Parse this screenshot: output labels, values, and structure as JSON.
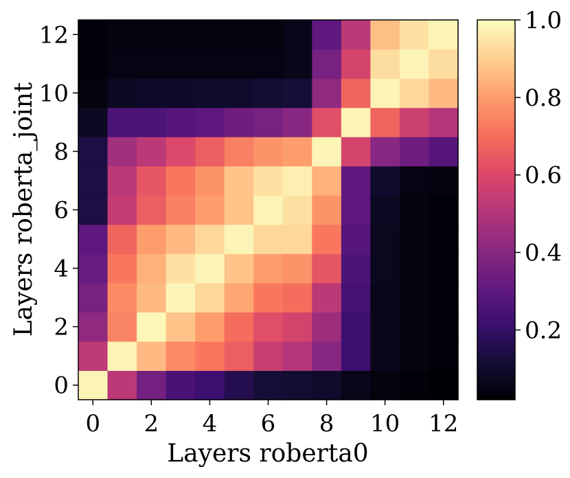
{
  "chart_data": {
    "type": "heatmap",
    "xlabel": "Layers roberta0",
    "ylabel": "Layers roberta_joint",
    "x_categories": [
      0,
      1,
      2,
      3,
      4,
      5,
      6,
      7,
      8,
      9,
      10,
      11,
      12
    ],
    "y_categories": [
      0,
      1,
      2,
      3,
      4,
      5,
      6,
      7,
      8,
      9,
      10,
      11,
      12
    ],
    "x_tick_labels": [
      "0",
      "2",
      "4",
      "6",
      "8",
      "10",
      "12"
    ],
    "y_tick_labels": [
      "0",
      "2",
      "4",
      "6",
      "8",
      "10",
      "12"
    ],
    "colormap": "magma",
    "colorbar": {
      "range": [
        0.02,
        1.0
      ],
      "tick_values": [
        0.2,
        0.4,
        0.6,
        0.8,
        1.0
      ],
      "tick_labels": [
        "0.2",
        "0.4",
        "0.6",
        "0.8",
        "1.0"
      ]
    },
    "values_by_row_y0_to_y12": [
      [
        0.98,
        0.52,
        0.35,
        0.25,
        0.22,
        0.16,
        0.12,
        0.11,
        0.1,
        0.06,
        0.04,
        0.03,
        0.02
      ],
      [
        0.53,
        0.98,
        0.86,
        0.76,
        0.72,
        0.66,
        0.55,
        0.5,
        0.4,
        0.22,
        0.06,
        0.04,
        0.03
      ],
      [
        0.42,
        0.75,
        0.99,
        0.88,
        0.8,
        0.7,
        0.62,
        0.58,
        0.45,
        0.22,
        0.06,
        0.04,
        0.03
      ],
      [
        0.36,
        0.76,
        0.86,
        0.98,
        0.92,
        0.82,
        0.72,
        0.7,
        0.52,
        0.24,
        0.06,
        0.04,
        0.03
      ],
      [
        0.32,
        0.72,
        0.84,
        0.94,
        0.98,
        0.88,
        0.8,
        0.78,
        0.64,
        0.26,
        0.07,
        0.04,
        0.03
      ],
      [
        0.3,
        0.68,
        0.8,
        0.86,
        0.92,
        0.98,
        0.92,
        0.92,
        0.72,
        0.28,
        0.07,
        0.04,
        0.03
      ],
      [
        0.14,
        0.54,
        0.66,
        0.74,
        0.8,
        0.88,
        0.98,
        0.94,
        0.78,
        0.3,
        0.08,
        0.04,
        0.03
      ],
      [
        0.14,
        0.52,
        0.64,
        0.72,
        0.78,
        0.88,
        0.94,
        0.97,
        0.84,
        0.3,
        0.1,
        0.05,
        0.04
      ],
      [
        0.14,
        0.46,
        0.52,
        0.6,
        0.66,
        0.74,
        0.78,
        0.8,
        0.98,
        0.58,
        0.4,
        0.34,
        0.28
      ],
      [
        0.08,
        0.26,
        0.26,
        0.28,
        0.3,
        0.34,
        0.36,
        0.4,
        0.62,
        0.98,
        0.68,
        0.56,
        0.5
      ],
      [
        0.04,
        0.08,
        0.09,
        0.09,
        0.1,
        0.1,
        0.11,
        0.12,
        0.42,
        0.68,
        0.98,
        0.92,
        0.86
      ],
      [
        0.03,
        0.05,
        0.05,
        0.05,
        0.05,
        0.05,
        0.05,
        0.06,
        0.36,
        0.58,
        0.93,
        0.98,
        0.93
      ],
      [
        0.03,
        0.04,
        0.04,
        0.04,
        0.04,
        0.04,
        0.04,
        0.06,
        0.3,
        0.52,
        0.87,
        0.94,
        0.98
      ]
    ]
  }
}
